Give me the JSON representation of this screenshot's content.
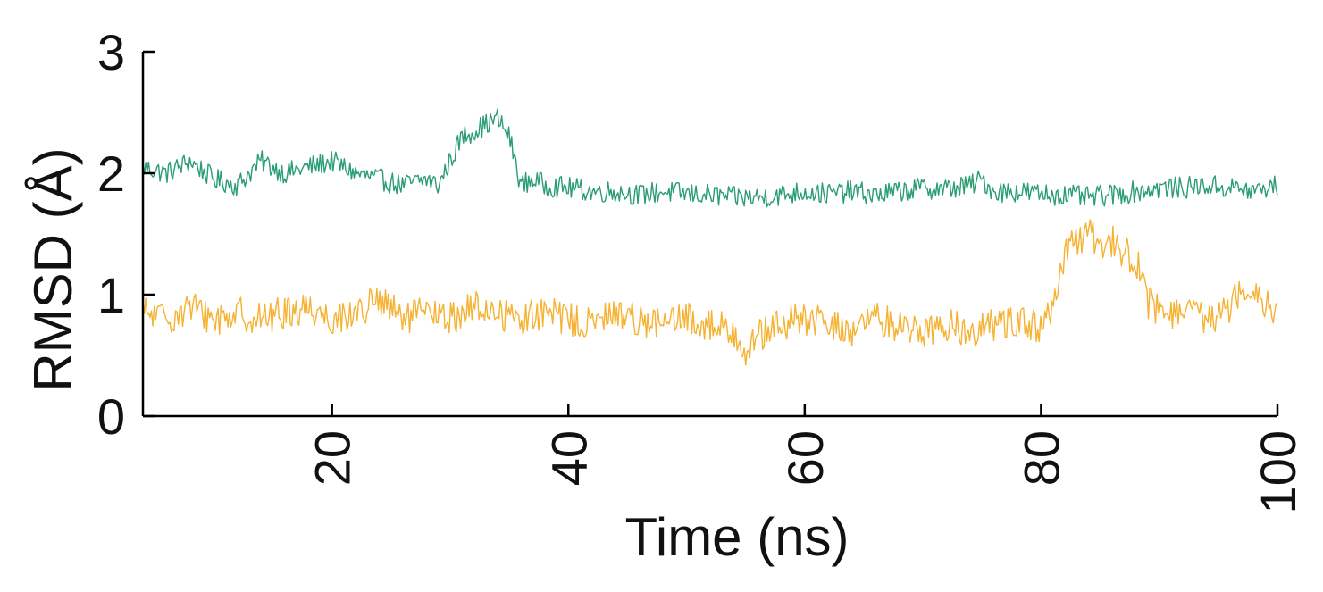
{
  "chart_data": {
    "type": "line",
    "title": "",
    "xlabel": "Time (ns)",
    "ylabel": "RMSD (Å)",
    "xlim": [
      4,
      100
    ],
    "ylim": [
      0,
      3
    ],
    "x_ticks": [
      20,
      40,
      60,
      80,
      100
    ],
    "x_tick_labels": [
      "20",
      "40",
      "60",
      "80",
      "100"
    ],
    "y_ticks": [
      0,
      1,
      2,
      3
    ],
    "y_tick_labels": [
      "0",
      "1",
      "2",
      "3"
    ],
    "grid": false,
    "legend": "none",
    "series": [
      {
        "color": "#2a9d73",
        "x": [
          4,
          6,
          8,
          10,
          12,
          14,
          16,
          18,
          20,
          22,
          24,
          26,
          28,
          29,
          30,
          31,
          32,
          33,
          34,
          35,
          36,
          37,
          38,
          40,
          42,
          44,
          46,
          48,
          50,
          52,
          54,
          56,
          58,
          60,
          62,
          64,
          66,
          68,
          70,
          72,
          74,
          75,
          76,
          78,
          80,
          82,
          84,
          86,
          88,
          90,
          92,
          94,
          96,
          98,
          100
        ],
        "values": [
          2.05,
          2.0,
          2.1,
          1.95,
          1.9,
          2.1,
          2.0,
          2.05,
          2.1,
          2.0,
          1.95,
          1.9,
          1.95,
          1.9,
          2.1,
          2.3,
          2.35,
          2.4,
          2.45,
          2.3,
          1.9,
          1.95,
          1.9,
          1.88,
          1.85,
          1.85,
          1.82,
          1.85,
          1.83,
          1.82,
          1.8,
          1.8,
          1.82,
          1.85,
          1.83,
          1.85,
          1.82,
          1.85,
          1.88,
          1.87,
          1.9,
          1.95,
          1.85,
          1.85,
          1.83,
          1.82,
          1.8,
          1.82,
          1.85,
          1.88,
          1.88,
          1.9,
          1.88,
          1.85,
          1.9
        ]
      },
      {
        "color": "#f5b233",
        "x": [
          4,
          6,
          8,
          10,
          12,
          14,
          16,
          18,
          20,
          22,
          24,
          26,
          28,
          30,
          32,
          34,
          36,
          38,
          40,
          42,
          44,
          46,
          48,
          50,
          52,
          54,
          55,
          56,
          58,
          60,
          62,
          64,
          66,
          68,
          70,
          72,
          74,
          76,
          78,
          80,
          81,
          82,
          83,
          84,
          85,
          86,
          87,
          88,
          89,
          90,
          92,
          94,
          96,
          97,
          98,
          100
        ],
        "values": [
          0.85,
          0.8,
          0.9,
          0.8,
          0.85,
          0.8,
          0.85,
          0.9,
          0.8,
          0.85,
          0.95,
          0.8,
          0.85,
          0.8,
          0.9,
          0.85,
          0.8,
          0.85,
          0.8,
          0.75,
          0.85,
          0.8,
          0.75,
          0.8,
          0.75,
          0.7,
          0.55,
          0.65,
          0.75,
          0.8,
          0.75,
          0.7,
          0.8,
          0.75,
          0.7,
          0.75,
          0.7,
          0.75,
          0.8,
          0.7,
          0.9,
          1.3,
          1.45,
          1.5,
          1.4,
          1.45,
          1.35,
          1.3,
          0.95,
          0.85,
          0.85,
          0.8,
          0.9,
          1.1,
          1.05,
          0.85
        ]
      }
    ]
  }
}
